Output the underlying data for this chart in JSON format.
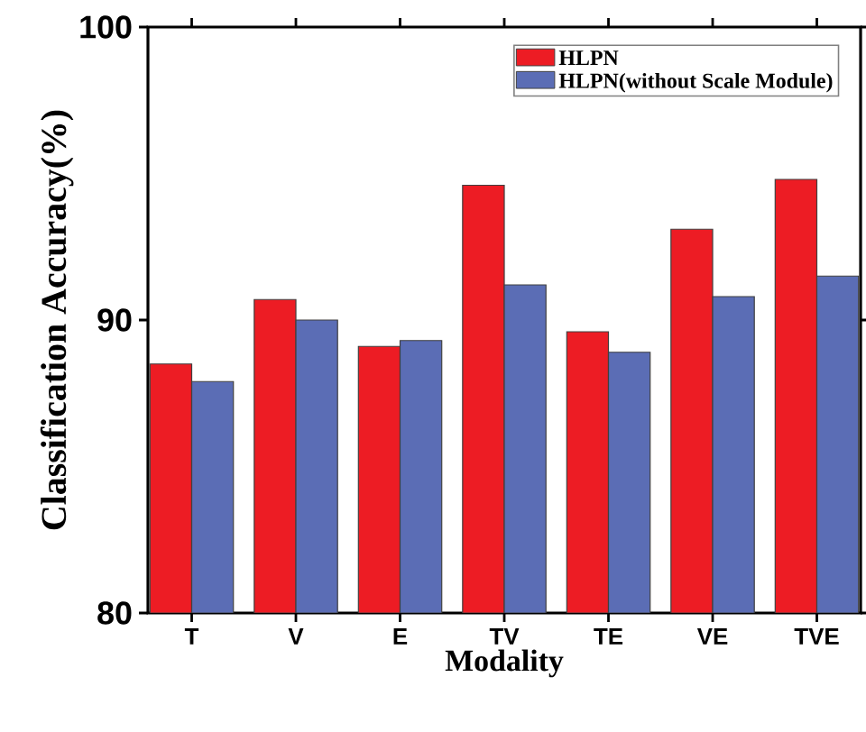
{
  "chart_data": {
    "type": "bar",
    "xlabel": "Modality",
    "ylabel": "Classification Accuracy(%)",
    "categories": [
      "T",
      "V",
      "E",
      "TV",
      "TE",
      "VE",
      "TVE"
    ],
    "series": [
      {
        "name": "HLPN",
        "color": "#ed1c24",
        "values": [
          88.5,
          90.7,
          89.1,
          94.6,
          89.6,
          93.1,
          94.8
        ]
      },
      {
        "name": "HLPN(without Scale Module)",
        "color": "#5b6db5",
        "values": [
          87.9,
          90.0,
          89.3,
          91.2,
          88.9,
          90.8,
          91.5
        ]
      }
    ],
    "ylim": [
      80,
      100
    ],
    "yticks": [
      80,
      90,
      100
    ],
    "legend": "top right"
  }
}
